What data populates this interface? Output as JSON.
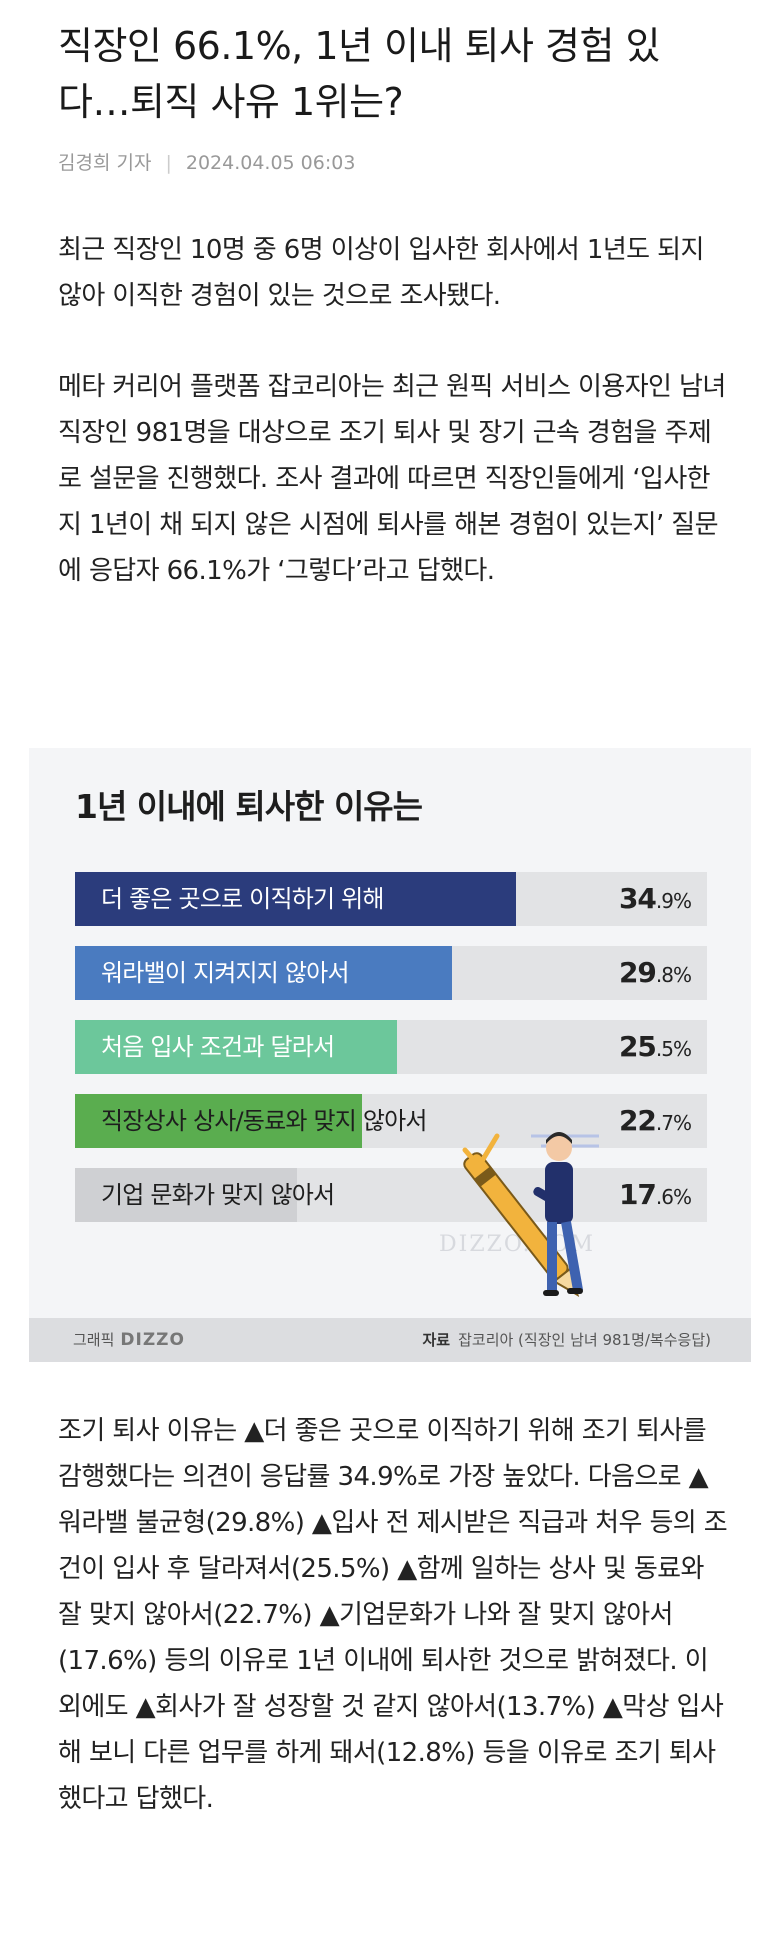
{
  "article": {
    "headline": "직장인 66.1%, 1년 이내 퇴사 경험 있다…퇴직 사유 1위는?",
    "author": "김경희 기자",
    "byline_separator": "|",
    "date": "2024.04.05 06:03",
    "paragraphs": [
      "최근 직장인 10명 중 6명 이상이 입사한 회사에서 1년도 되지 않아 이직한 경험이 있는 것으로 조사됐다.",
      "메타 커리어 플랫폼 잡코리아는 최근 원픽 서비스 이용자인 남녀 직장인 981명을 대상으로 조기 퇴사 및 장기 근속 경험을 주제로 설문을 진행했다. 조사 결과에 따르면 직장인들에게 ‘입사한 지 1년이 채 되지 않은 시점에 퇴사를 해본 경험이 있는지’ 질문에 응답자 66.1%가 ‘그렇다’라고 답했다.",
      "조기 퇴사 이유는 ▲더 좋은 곳으로 이직하기 위해 조기 퇴사를 감행했다는 의견이 응답률 34.9%로 가장 높았다. 다음으로 ▲워라밸 불균형(29.8%) ▲입사 전 제시받은 직급과 처우 등의 조건이 입사 후 달라져서(25.5%) ▲함께 일하는 상사 및 동료와 잘 맞지 않아서(22.7%) ▲기업문화가 나와 잘 맞지 않아서(17.6%) 등의 이유로 1년 이내에 퇴사한 것으로 밝혀졌다. 이 외에도 ▲회사가 잘 성장할 것 같지 않아서(13.7%) ▲막상 입사해 보니 다른 업무를 하게 돼서(12.8%) 등을 이유로 조기 퇴사했다고 답했다."
    ]
  },
  "chart_data": {
    "type": "bar",
    "orientation": "horizontal",
    "title": "1년 이내에 퇴사한 이유는",
    "unit": "%",
    "xlim": [
      0,
      50
    ],
    "bars": [
      {
        "label": "더 좋은 곳으로 이직하기 위해",
        "value": 34.9,
        "int": "34",
        "dec": ".9%",
        "color": "#2b3c7c",
        "text_color": "#ffffff"
      },
      {
        "label": "워라밸이 지켜지지 않아서",
        "value": 29.8,
        "int": "29",
        "dec": ".8%",
        "color": "#4a7bc0",
        "text_color": "#ffffff"
      },
      {
        "label": "처음 입사 조건과 달라서",
        "value": 25.5,
        "int": "25",
        "dec": ".5%",
        "color": "#6cc79b",
        "text_color": "#ffffff"
      },
      {
        "label": "직장상사 상사/동료와 맞지 않아서",
        "value": 22.7,
        "int": "22",
        "dec": ".7%",
        "color": "#5aad4f",
        "text_color": "#1e1e1e"
      },
      {
        "label": "기업 문화가 맞지 않아서",
        "value": 17.6,
        "int": "17",
        "dec": ".6%",
        "color": "#cfd0d3",
        "text_color": "#1e1e1e"
      }
    ],
    "credit": {
      "graphic_label": "그래픽",
      "graphic_brand": "DIZZO",
      "source_label": "자료",
      "source_text": "잡코리아 (직장인 남녀 981명/복수응답)"
    },
    "watermark": "DIZZO.COM"
  }
}
